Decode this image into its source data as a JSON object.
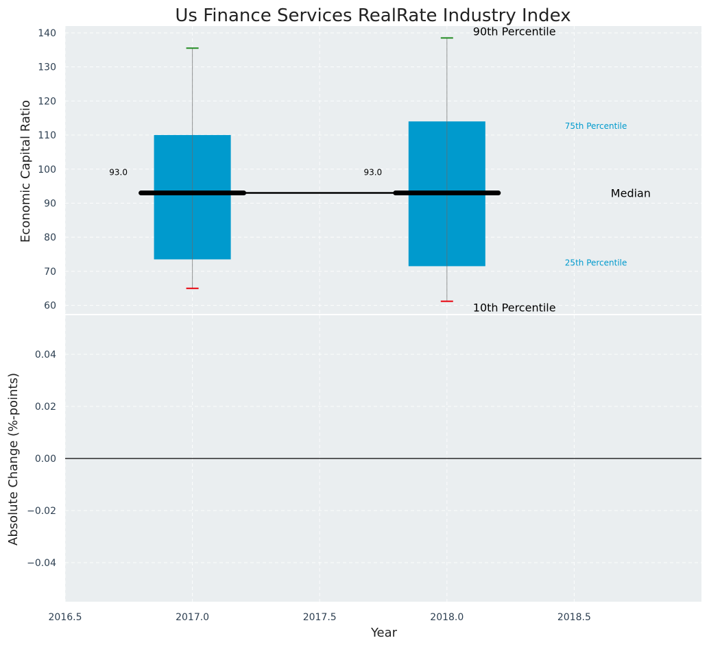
{
  "chart_data": [
    {
      "type": "box",
      "title": "Us Finance Services RealRate Industry Index",
      "xlabel": "",
      "ylabel": "Economic Capital Ratio",
      "ylim": [
        57.5,
        142
      ],
      "yticks": [
        60,
        70,
        80,
        90,
        100,
        110,
        120,
        130,
        140
      ],
      "xlim": [
        2016.5,
        2019.0
      ],
      "xticks": [
        2016.5,
        2017.0,
        2017.5,
        2018.0,
        2018.5
      ],
      "xtick_labels": [
        "2016.5",
        "2017.0",
        "2017.5",
        "2018.0",
        "2018.5"
      ],
      "grid": true,
      "colors": {
        "box": "#009acd",
        "p90": "#228b22",
        "p10": "#e8000b",
        "median": "#000000",
        "annotation": "#009acd"
      },
      "boxes": [
        {
          "year": 2017.0,
          "p10": 65,
          "p25": 73.5,
          "median": 93,
          "p75": 110,
          "p90": 135.5,
          "median_label": "93.0"
        },
        {
          "year": 2018.0,
          "p10": 61.2,
          "p25": 71.5,
          "median": 93,
          "p75": 114,
          "p90": 138.5,
          "median_label": "93.0"
        }
      ],
      "annotations": {
        "p90": "90th Percentile",
        "p75": "75th Percentile",
        "median": "Median",
        "p25": "25th Percentile",
        "p10": "10th Percentile"
      }
    },
    {
      "type": "line",
      "title": "",
      "xlabel": "Year",
      "ylabel": "Absolute Change (%-points)",
      "ylim": [
        -0.055,
        0.055
      ],
      "yticks": [
        -0.04,
        -0.02,
        0.0,
        0.02,
        0.04
      ],
      "ytick_labels": [
        "−0.04",
        "−0.02",
        "0.00",
        "0.02",
        "0.04"
      ],
      "xlim": [
        2016.5,
        2019.0
      ],
      "xticks": [
        2016.5,
        2017.0,
        2017.5,
        2018.0,
        2018.5
      ],
      "xtick_labels": [
        "2016.5",
        "2017.0",
        "2017.5",
        "2018.0",
        "2018.5"
      ],
      "grid": true,
      "reference_line": 0.0,
      "series": []
    }
  ]
}
